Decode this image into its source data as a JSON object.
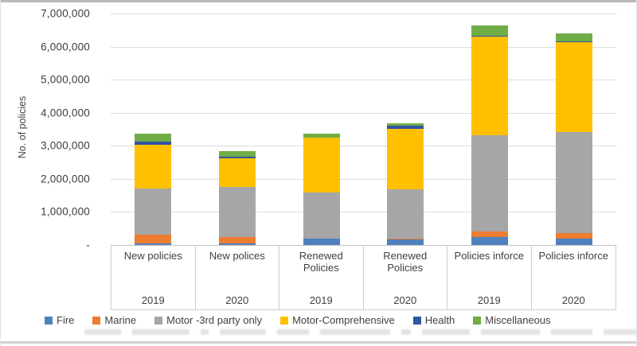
{
  "chart_data": {
    "type": "bar",
    "subtype": "stacked-vertical",
    "title": "",
    "ylabel": "No. of policies",
    "xlabel": "",
    "ylim": [
      0,
      7000000
    ],
    "ytick_step": 1000000,
    "ytick_labels_top_to_bottom": [
      "7,000,000",
      "6,000,000",
      "5,000,000",
      "4,000,000",
      "3,000,000",
      "2,000,000",
      "1,000,000",
      "-"
    ],
    "grid": true,
    "legend_position": "bottom",
    "categories": [
      {
        "label": "New policies",
        "year": "2019"
      },
      {
        "label": "New polices",
        "year": "2020"
      },
      {
        "label": "Renewed Policies",
        "year": "2019"
      },
      {
        "label": "Renewed Policies",
        "year": "2020"
      },
      {
        "label": "Policies inforce",
        "year": "2019"
      },
      {
        "label": "Policies inforce",
        "year": "2020"
      }
    ],
    "series": [
      {
        "name": "Fire",
        "color": "#4E81BD",
        "values": [
          60000,
          60000,
          190000,
          180000,
          230000,
          200000
        ]
      },
      {
        "name": "Marine",
        "color": "#ED7D31",
        "values": [
          260000,
          190000,
          10000,
          10000,
          170000,
          170000
        ]
      },
      {
        "name": "Motor -3rd party only",
        "color": "#A6A6A6",
        "values": [
          1400000,
          1510000,
          1400000,
          1490000,
          2930000,
          3050000
        ]
      },
      {
        "name": "Motor-Comprehensive",
        "color": "#FFC000",
        "values": [
          1320000,
          860000,
          1640000,
          1830000,
          2980000,
          2720000
        ]
      },
      {
        "name": "Health",
        "color": "#3155A5",
        "values": [
          100000,
          50000,
          20000,
          100000,
          20000,
          20000
        ]
      },
      {
        "name": "Miscellaneous",
        "color": "#70AD47",
        "values": [
          230000,
          170000,
          120000,
          70000,
          300000,
          250000
        ]
      }
    ]
  },
  "style_colors": {
    "gridline": "#dcdcdc",
    "axis_text": "#3d3d3d",
    "table_border": "#cfcdcd"
  }
}
